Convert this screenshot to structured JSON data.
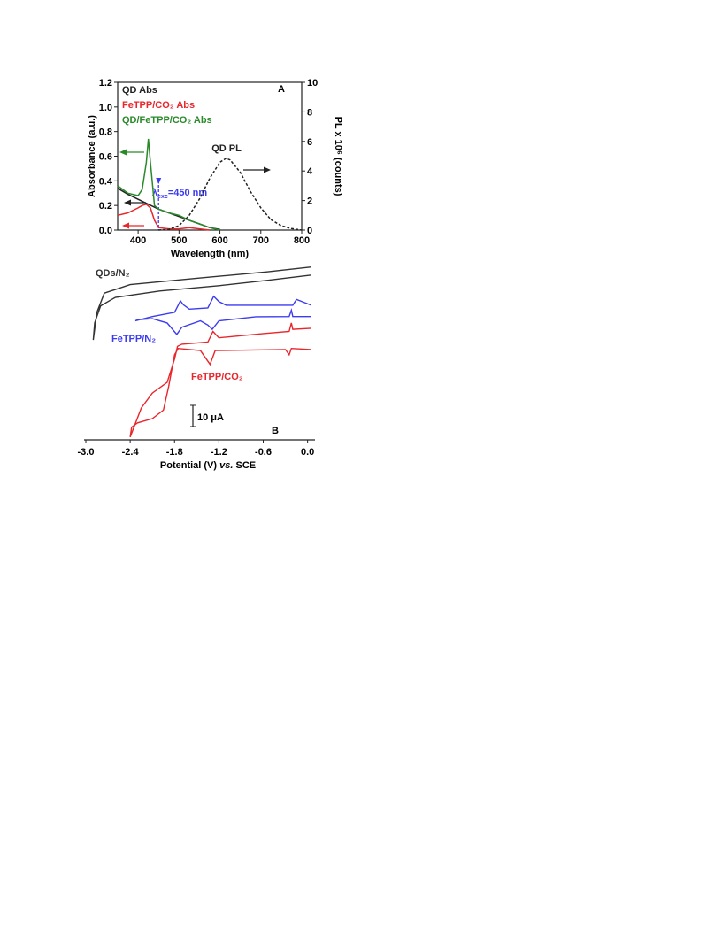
{
  "chart_data": [
    {
      "type": "line",
      "panel_label": "A",
      "xlabel": "Wavelength (nm)",
      "ylabel": "Absorbance (a.u.)",
      "y2label": "PL x 10⁶ (counts)",
      "xlim": [
        350,
        800
      ],
      "ylim": [
        0,
        1.2
      ],
      "y2lim": [
        0,
        10
      ],
      "xticks": [
        400,
        500,
        600,
        700,
        800
      ],
      "yticks": [
        {
          "value": 0,
          "label": "0.0"
        },
        {
          "value": 0.2,
          "label": "0.2"
        },
        {
          "value": 0.4,
          "label": "0.4"
        },
        {
          "value": 0.6,
          "label": "0.6"
        },
        {
          "value": 0.8,
          "label": "0.8"
        },
        {
          "value": 1.0,
          "label": "1.0"
        },
        {
          "value": 1.2,
          "label": "1.2"
        }
      ],
      "y2ticks": [
        0,
        2,
        4,
        6,
        8,
        10
      ],
      "annotation": {
        "symbol": "λ",
        "subscript": "exc",
        "text": "=450 nm",
        "x": 450
      },
      "series": [
        {
          "name": "QD Abs",
          "color": "#222222",
          "x": [
            350,
            375,
            400,
            425,
            450,
            475,
            500,
            525,
            550,
            575,
            600
          ],
          "values": [
            0.34,
            0.29,
            0.25,
            0.21,
            0.17,
            0.14,
            0.11,
            0.08,
            0.05,
            0.02,
            0.005
          ]
        },
        {
          "name": "FeTPP/CO₂ Abs",
          "color": "#e8262b",
          "x": [
            350,
            375,
            400,
            410,
            420,
            430,
            440,
            450,
            475,
            500,
            525,
            550,
            575
          ],
          "values": [
            0.12,
            0.14,
            0.18,
            0.2,
            0.21,
            0.18,
            0.08,
            0.02,
            0.01,
            0.01,
            0.02,
            0.01,
            0
          ]
        },
        {
          "name": "QD/FeTPP/CO₂ Abs",
          "color": "#2a8a2a",
          "x": [
            350,
            375,
            400,
            410,
            420,
            425,
            430,
            440,
            450,
            475,
            500,
            525,
            550,
            575,
            600
          ],
          "values": [
            0.36,
            0.3,
            0.28,
            0.33,
            0.55,
            0.74,
            0.55,
            0.2,
            0.17,
            0.14,
            0.12,
            0.08,
            0.05,
            0.02,
            0
          ]
        },
        {
          "name": "QD PL",
          "color": "#222222",
          "axis": "y2",
          "dash": true,
          "x": [
            450,
            475,
            500,
            525,
            550,
            575,
            600,
            615,
            625,
            650,
            675,
            700,
            725,
            750,
            775,
            800
          ],
          "values": [
            0,
            0.05,
            0.3,
            1.0,
            2.1,
            3.5,
            4.6,
            4.85,
            4.75,
            3.9,
            2.6,
            1.5,
            0.7,
            0.3,
            0.1,
            0
          ]
        }
      ]
    },
    {
      "type": "cv",
      "panel_label": "B",
      "xlabel": {
        "start": "Potential (V) ",
        "italic": "vs.",
        "end": " SCE"
      },
      "xlim": [
        -3.0,
        0.1
      ],
      "ylim": [
        0,
        82
      ],
      "xticks": [
        {
          "value": -3.0,
          "label": "-3.0"
        },
        {
          "value": -2.4,
          "label": "-2.4"
        },
        {
          "value": -1.8,
          "label": "-1.8"
        },
        {
          "value": -1.2,
          "label": "-1.2"
        },
        {
          "value": -0.6,
          "label": "-0.6"
        },
        {
          "value": 0.0,
          "label": "0.0"
        }
      ],
      "scale_bar": {
        "value": 10,
        "label": "10 μA"
      },
      "series": [
        {
          "name": "QDs/N₂",
          "color": "#333333",
          "x": [
            0.05,
            -0.55,
            -1.5,
            -2.4,
            -2.75,
            -2.85,
            -2.9,
            -2.88,
            -2.8,
            -2.6,
            -2.0,
            -1.2,
            -0.55,
            0.05
          ],
          "values": [
            81.3,
            79,
            76,
            73,
            69,
            60,
            47,
            55,
            63,
            67,
            70,
            72.5,
            75,
            77.5
          ]
        },
        {
          "name": "FeTPP/N₂",
          "color": "#3b3bf0",
          "x": [
            0.05,
            -0.15,
            -0.2,
            -1.1,
            -1.2,
            -1.27,
            -1.35,
            -1.6,
            -1.68,
            -1.72,
            -1.8,
            -2.1,
            -2.33,
            -2.3,
            -2.1,
            -1.9,
            -1.77,
            -1.7,
            -1.45,
            -1.35,
            -1.29,
            -1.2,
            -0.7,
            -0.25,
            -0.22,
            -0.2,
            0.05
          ],
          "values": [
            63.3,
            66,
            63.3,
            63.3,
            65,
            67.5,
            62,
            61.5,
            63.5,
            65.4,
            60,
            58,
            56,
            56.5,
            57,
            55,
            49.6,
            53,
            56,
            54,
            52,
            56,
            57.9,
            58,
            61,
            58,
            58
          ]
        },
        {
          "name": "FeTPP/CO₂",
          "color": "#e8262b",
          "x": [
            0.05,
            -0.2,
            -0.22,
            -0.25,
            -0.6,
            -1.2,
            -1.28,
            -1.35,
            -1.7,
            -1.76,
            -1.8,
            -1.9,
            -2.1,
            -2.25,
            -2.4,
            -2.38,
            -2.3,
            -2.1,
            -1.95,
            -1.88,
            -1.8,
            -1.75,
            -1.45,
            -1.32,
            -1.25,
            -0.3,
            -0.25,
            -0.22,
            0.05
          ],
          "values": [
            52.5,
            52,
            55,
            51,
            50,
            48,
            51,
            46,
            45,
            44,
            38,
            27,
            22,
            15,
            1.3,
            6,
            8,
            10,
            14,
            25,
            40,
            43,
            42,
            35.5,
            42,
            42.5,
            40,
            43,
            42.5
          ]
        }
      ]
    }
  ]
}
